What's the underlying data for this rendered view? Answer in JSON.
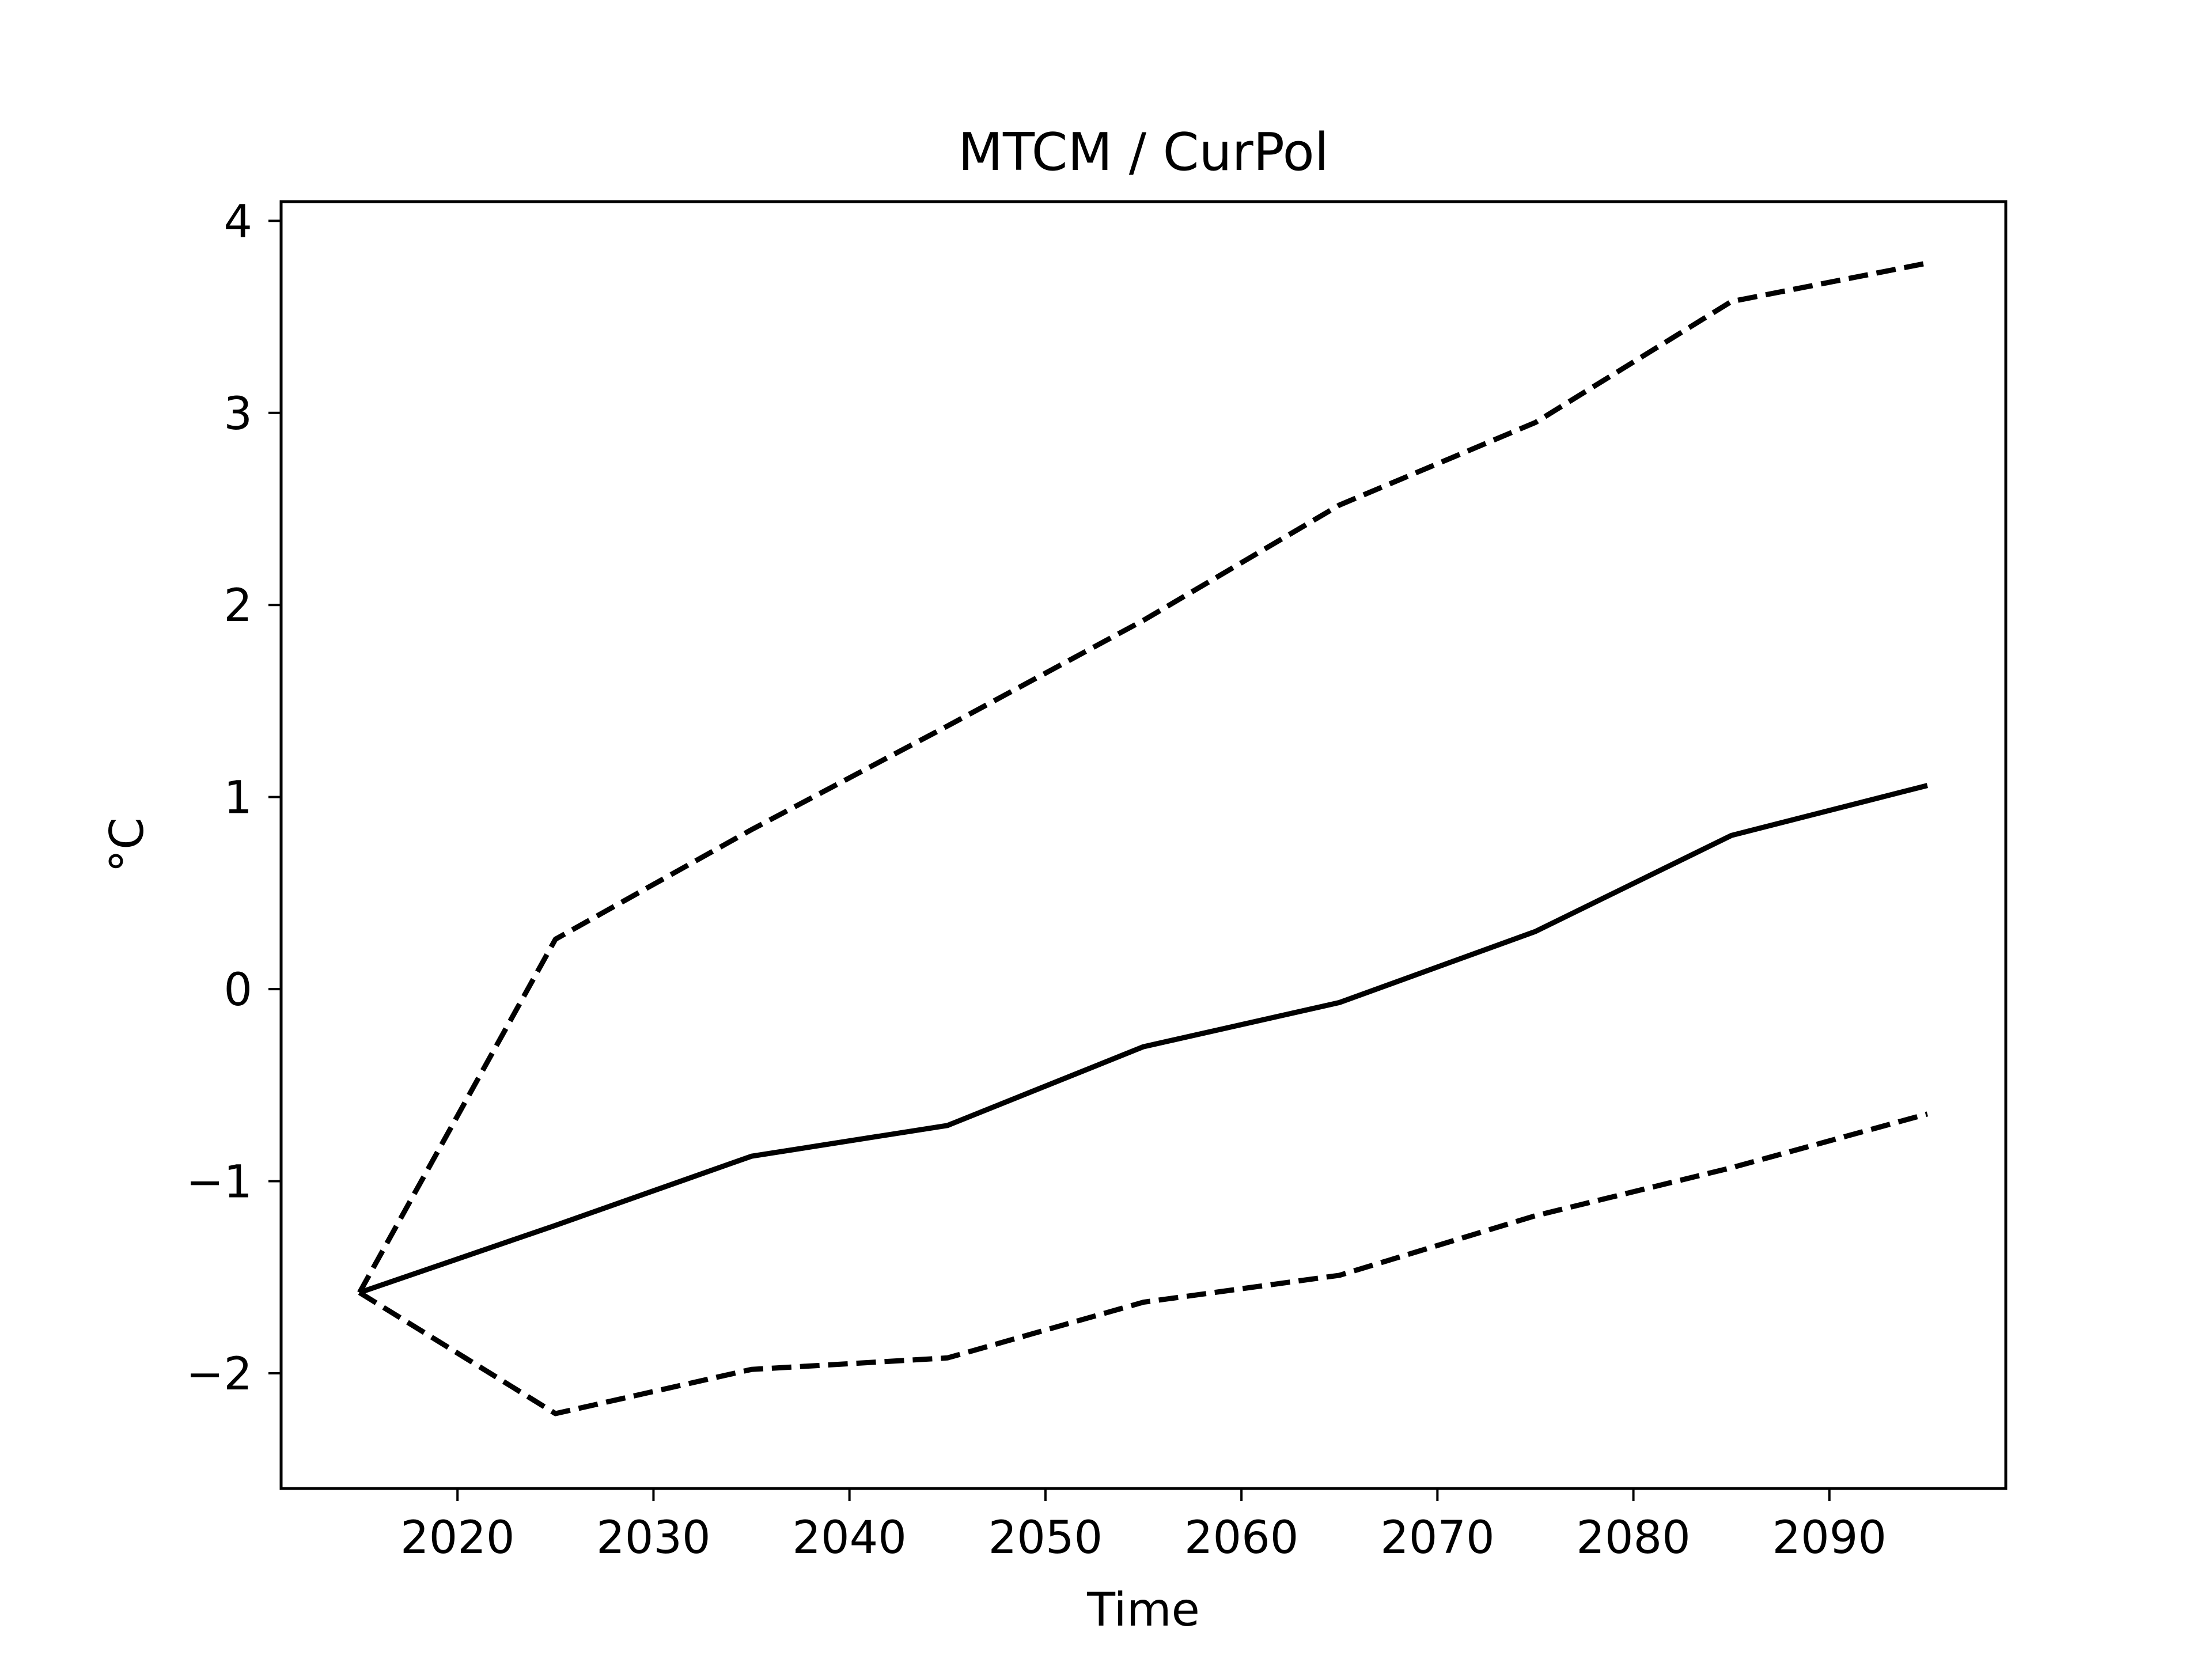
{
  "chart_data": {
    "type": "line",
    "title": "MTCM / CurPol",
    "xlabel": "Time",
    "ylabel": "°C",
    "x": [
      2015,
      2025,
      2035,
      2045,
      2055,
      2065,
      2075,
      2085,
      2095
    ],
    "xlim": [
      2011,
      2099
    ],
    "ylim": [
      -2.6,
      4.1
    ],
    "xticks": [
      2020,
      2030,
      2040,
      2050,
      2060,
      2070,
      2080,
      2090
    ],
    "yticks": [
      -2,
      -1,
      0,
      1,
      2,
      3,
      4
    ],
    "ytick_labels": [
      "−2",
      "−1",
      "0",
      "1",
      "2",
      "3",
      "4"
    ],
    "grid": false,
    "series": [
      {
        "style": "solid",
        "color": "#000000",
        "values": [
          -1.58,
          -1.23,
          -0.87,
          -0.71,
          -0.3,
          -0.07,
          0.3,
          0.8,
          1.06
        ]
      },
      {
        "style": "dashed",
        "color": "#000000",
        "values": [
          -1.58,
          0.26,
          0.83,
          1.37,
          1.92,
          2.52,
          2.95,
          3.58,
          3.78
        ]
      },
      {
        "style": "dashed",
        "color": "#000000",
        "values": [
          -1.58,
          -2.21,
          -1.98,
          -1.92,
          -1.63,
          -1.49,
          -1.18,
          -0.93,
          -0.65
        ]
      }
    ]
  }
}
